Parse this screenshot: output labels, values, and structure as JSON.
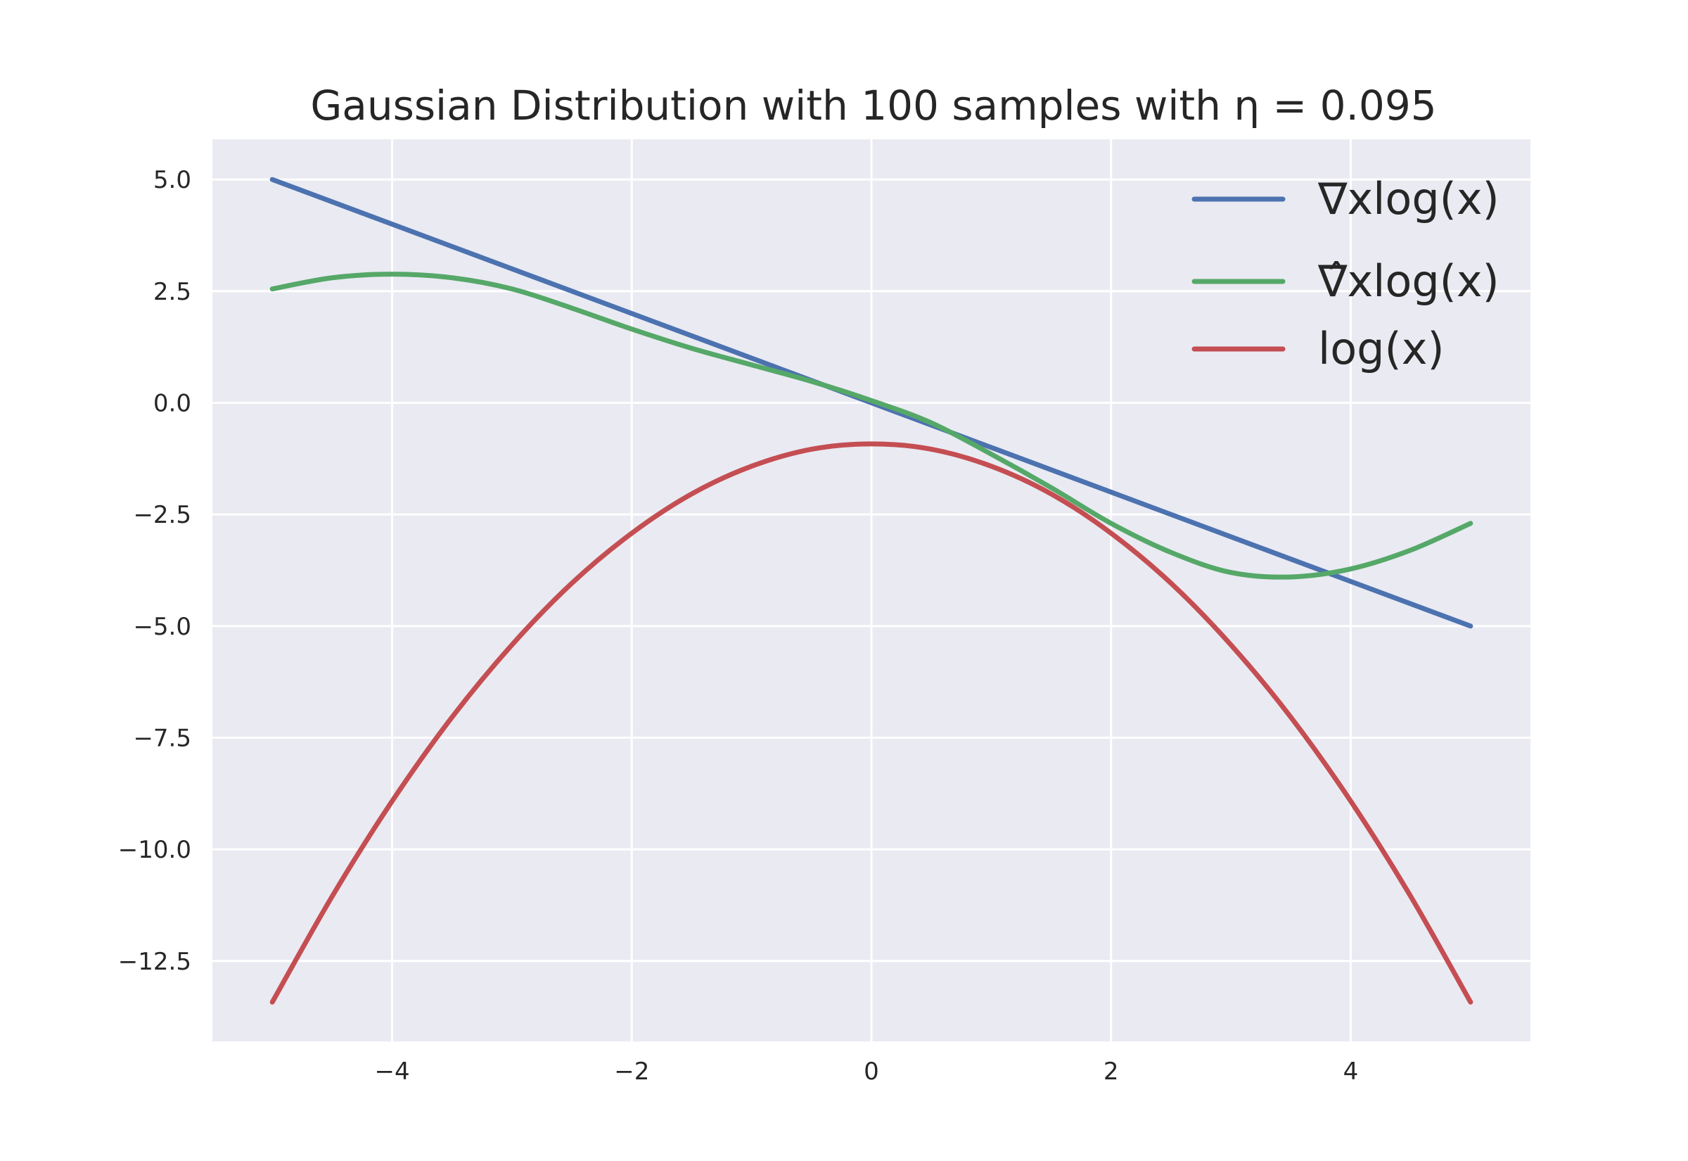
{
  "chart_data": {
    "type": "line",
    "title": "Gaussian Distribution with 100 samples with η = 0.095",
    "xlabel": "",
    "ylabel": "",
    "xlim": [
      -5.5,
      5.5
    ],
    "ylim": [
      -14.3,
      5.9
    ],
    "x_ticks": [
      -4,
      -2,
      0,
      2,
      4
    ],
    "x_tick_labels": [
      "−4",
      "−2",
      "0",
      "2",
      "4"
    ],
    "y_ticks": [
      5.0,
      2.5,
      0.0,
      -2.5,
      -5.0,
      -7.5,
      -10.0,
      -12.5
    ],
    "y_tick_labels": [
      "5.0",
      "2.5",
      "0.0",
      "−2.5",
      "−5.0",
      "−7.5",
      "−10.0",
      "−12.5"
    ],
    "grid": true,
    "legend_position": "top-right",
    "background_color": "#eaeaf2",
    "series": [
      {
        "name": "∇xlog(x)",
        "color": "#4c72b0",
        "x": [
          -5,
          5
        ],
        "y": [
          5.0,
          -5.0
        ]
      },
      {
        "name": "∇̂xlog(x)",
        "color": "#55a868",
        "x": [
          -5,
          -4.5,
          -4,
          -3.5,
          -3,
          -2.5,
          -2,
          -1.5,
          -1,
          -0.5,
          0,
          0.5,
          1,
          1.5,
          2,
          2.5,
          3,
          3.5,
          4,
          4.5,
          5
        ],
        "y": [
          2.55,
          2.8,
          2.88,
          2.8,
          2.55,
          2.12,
          1.65,
          1.22,
          0.85,
          0.48,
          0.05,
          -0.45,
          -1.15,
          -1.9,
          -2.7,
          -3.35,
          -3.8,
          -3.9,
          -3.72,
          -3.3,
          -2.7
        ]
      },
      {
        "name": "log(x)",
        "color": "#c44e52",
        "x": [
          -5,
          -4.5,
          -4,
          -3.5,
          -3,
          -2.5,
          -2,
          -1.5,
          -1,
          -0.5,
          0,
          0.5,
          1,
          1.5,
          2,
          2.5,
          3,
          3.5,
          4,
          4.5,
          5
        ],
        "y": [
          -13.42,
          -11.05,
          -8.92,
          -7.04,
          -5.42,
          -4.04,
          -2.92,
          -2.04,
          -1.42,
          -1.04,
          -0.92,
          -1.04,
          -1.42,
          -2.04,
          -2.92,
          -4.04,
          -5.42,
          -7.04,
          -8.92,
          -11.05,
          -13.42
        ]
      }
    ]
  }
}
